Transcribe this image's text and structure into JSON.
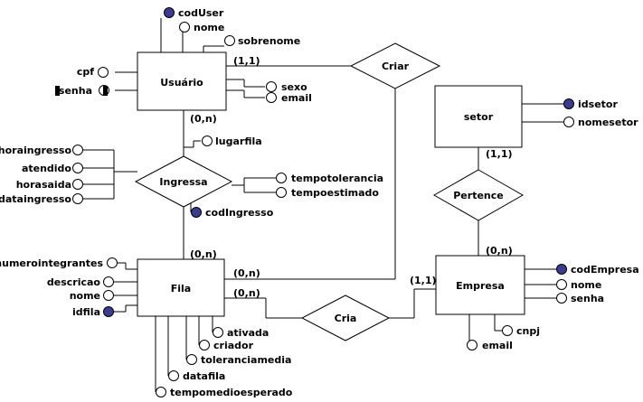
{
  "entities": {
    "usuario": "Usuário",
    "fila": "Fila",
    "setor": "setor",
    "empresa": "Empresa"
  },
  "relationships": {
    "criar": "Criar",
    "ingressa": "Ingressa",
    "pertence": "Pertence",
    "cria": "Cria"
  },
  "attributes": {
    "usuario": {
      "codUser": "codUser",
      "nome": "nome",
      "sobrenome": "sobrenome",
      "cpf": "cpf",
      "senha": "senha",
      "sexo": "sexo",
      "email": "email"
    },
    "ingressa": {
      "lugarfila": "lugarfila",
      "horaingresso": "horaingresso",
      "atendido": "atendido",
      "horasaida": "horasaida",
      "dataingresso": "dataingresso",
      "tempotolerancia": "tempotolerancia",
      "tempoestimado": "tempoestimado",
      "codIngresso": "codIngresso"
    },
    "fila": {
      "numerointegrantes": "numerointegrantes",
      "descricao": "descricao",
      "nome": "nome",
      "idfila": "idfila",
      "ativada": "ativada",
      "criador": "criador",
      "toleranciamedia": "toleranciamedia",
      "datafila": "datafila",
      "tempomedioesperado": "tempomedioesperado"
    },
    "setor": {
      "idsetor": "idsetor",
      "nomesetor": "nomesetor"
    },
    "empresa": {
      "codEmpresa": "codEmpresa",
      "nome": "nome",
      "senha": "senha",
      "cnpj": "cnpj",
      "email": "email"
    }
  },
  "cardinalities": {
    "usuario_criar": "(1,1)",
    "usuario_ingressa": "(0,n)",
    "fila_ingressa": "(0,n)",
    "fila_criar": "(0,n)",
    "fila_cria": "(0,n)",
    "empresa_cria": "(1,1)",
    "setor_pertence": "(1,1)",
    "empresa_pertence": "(0,n)"
  },
  "colors": {
    "key_attribute_fill": "#3b3b8f",
    "line": "#000000"
  }
}
